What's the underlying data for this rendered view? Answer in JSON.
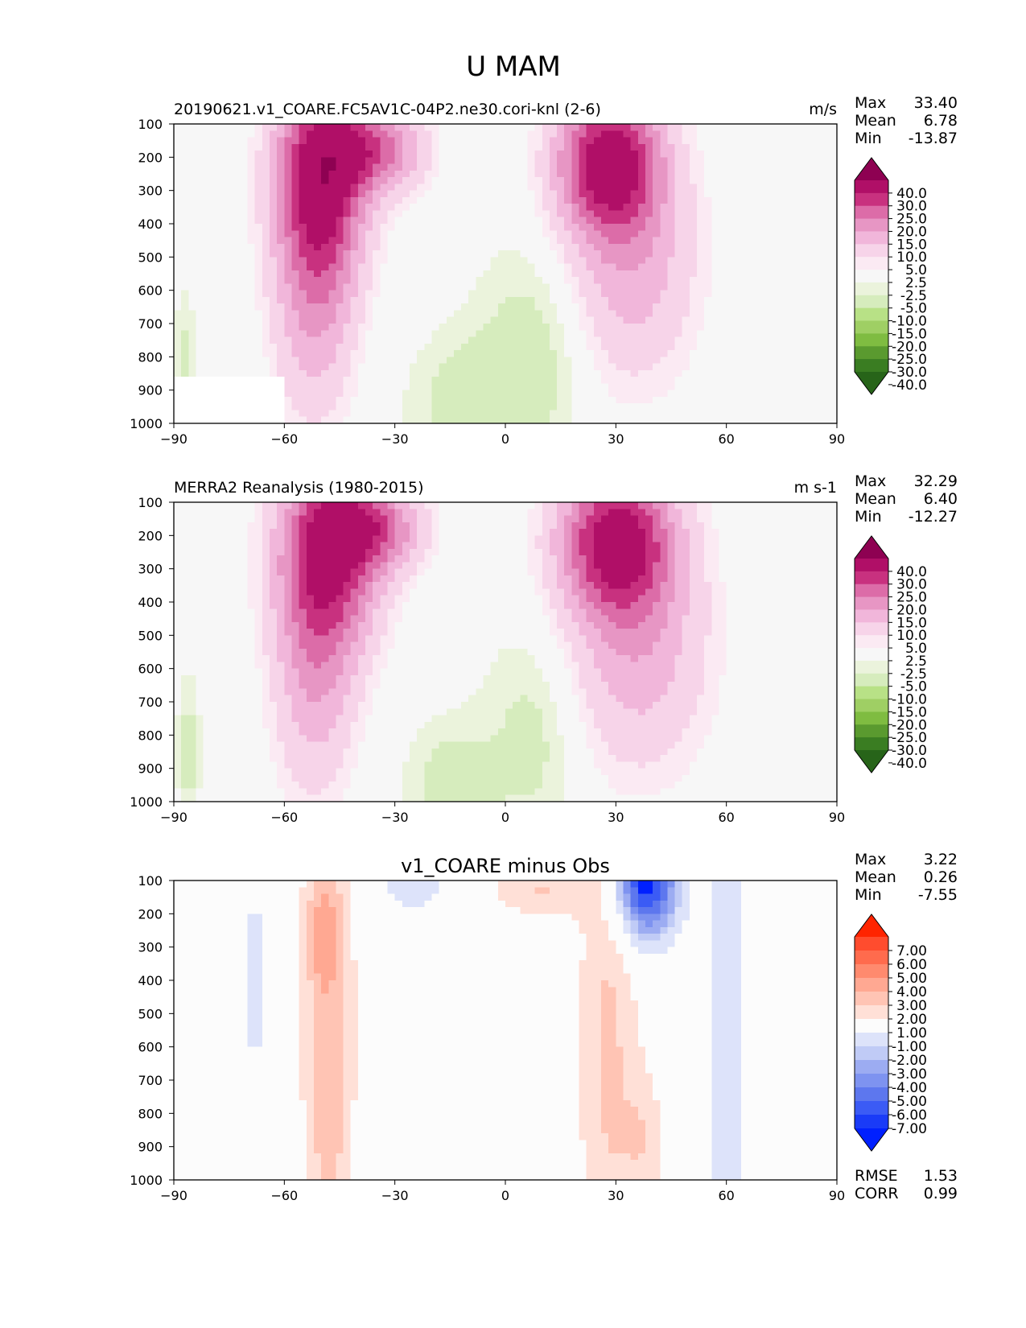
{
  "figure": {
    "title": "U MAM"
  },
  "chart_data": [
    {
      "type": "heatmap",
      "title": "20190621.v1_COARE.FC5AV1C-04P2.ne30.cori-knl (2-6)",
      "units": "m/s",
      "xlim": [
        -90,
        90
      ],
      "ylim": [
        1000,
        100
      ],
      "xticks": [
        "−90",
        "−60",
        "−30",
        "0",
        "30",
        "60",
        "90"
      ],
      "yticks": [
        "100",
        "200",
        "300",
        "400",
        "500",
        "600",
        "700",
        "800",
        "900",
        "1000"
      ],
      "stats": {
        "Max": "33.40",
        "Mean": "6.78",
        "Min": "-13.87"
      },
      "colorbar": {
        "labels": [
          "40.0",
          "30.0",
          "25.0",
          "20.0",
          "15.0",
          "10.0",
          "5.0",
          "2.5",
          "-2.5",
          "-5.0",
          "-10.0",
          "-15.0",
          "-20.0",
          "-25.0",
          "-30.0",
          "-40.0"
        ],
        "colors": [
          "#8e0152",
          "#b00f67",
          "#c8317f",
          "#dc6ca8",
          "#e796c4",
          "#f1b6da",
          "#f7d4e9",
          "#fbeaf3",
          "#f7f7f7",
          "#ebf3dc",
          "#d6ecbd",
          "#b8e186",
          "#9fcf64",
          "#7fbc41",
          "#5a9a2f",
          "#3a7d22",
          "#276419"
        ]
      },
      "field": {
        "kind": "model",
        "bg": -1,
        "jets": [
          {
            "lat": -50,
            "p": 240,
            "amp": 34,
            "sx": 9,
            "sp": 230
          },
          {
            "lat": -52,
            "p": 650,
            "amp": 14,
            "sx": 8,
            "sp": 260
          },
          {
            "lat": -34,
            "p": 180,
            "amp": 20,
            "sx": 9,
            "sp": 90
          },
          {
            "lat": 28,
            "p": 210,
            "amp": 33,
            "sx": 10,
            "sp": 150
          },
          {
            "lat": 34,
            "p": 520,
            "amp": 14,
            "sx": 13,
            "sp": 260
          },
          {
            "lat": 8,
            "p": 780,
            "amp": -7,
            "sx": 10,
            "sp": 220
          },
          {
            "lat": -10,
            "p": 950,
            "amp": -7,
            "sx": 10,
            "sp": 140
          },
          {
            "lat": -87,
            "p": 850,
            "amp": -6,
            "sx": 2,
            "sp": 150
          }
        ],
        "mask": [
          -90,
          860,
          -60,
          1000
        ]
      }
    },
    {
      "type": "heatmap",
      "title": "MERRA2 Reanalysis (1980-2015)",
      "units": "m s-1",
      "xlim": [
        -90,
        90
      ],
      "ylim": [
        1000,
        100
      ],
      "xticks": [
        "−90",
        "−60",
        "−30",
        "0",
        "30",
        "60",
        "90"
      ],
      "yticks": [
        "100",
        "200",
        "300",
        "400",
        "500",
        "600",
        "700",
        "800",
        "900",
        "1000"
      ],
      "stats": {
        "Max": "32.29",
        "Mean": "6.40",
        "Min": "-12.27"
      },
      "colorbar": {
        "labels": [
          "40.0",
          "30.0",
          "25.0",
          "20.0",
          "15.0",
          "10.0",
          "5.0",
          "2.5",
          "-2.5",
          "-5.0",
          "-10.0",
          "-15.0",
          "-20.0",
          "-25.0",
          "-30.0",
          "-40.0"
        ],
        "colors": [
          "#8e0152",
          "#b00f67",
          "#c8317f",
          "#dc6ca8",
          "#e796c4",
          "#f1b6da",
          "#f7d4e9",
          "#fbeaf3",
          "#f7f7f7",
          "#ebf3dc",
          "#d6ecbd",
          "#b8e186",
          "#9fcf64",
          "#7fbc41",
          "#5a9a2f",
          "#3a7d22",
          "#276419"
        ]
      },
      "field": {
        "kind": "obs",
        "bg": -1,
        "jets": [
          {
            "lat": -48,
            "p": 240,
            "amp": 32,
            "sx": 10,
            "sp": 220
          },
          {
            "lat": -52,
            "p": 650,
            "amp": 13,
            "sx": 8,
            "sp": 260
          },
          {
            "lat": -34,
            "p": 180,
            "amp": 18,
            "sx": 9,
            "sp": 90
          },
          {
            "lat": 30,
            "p": 210,
            "amp": 32,
            "sx": 11,
            "sp": 160
          },
          {
            "lat": 36,
            "p": 540,
            "amp": 14,
            "sx": 14,
            "sp": 270
          },
          {
            "lat": 8,
            "p": 790,
            "amp": -6,
            "sx": 9,
            "sp": 220
          },
          {
            "lat": -14,
            "p": 960,
            "amp": -7,
            "sx": 8,
            "sp": 130
          },
          {
            "lat": -86,
            "p": 850,
            "amp": -6,
            "sx": 2,
            "sp": 150
          }
        ],
        "mask": null
      }
    },
    {
      "type": "heatmap",
      "title": "v1_COARE minus Obs",
      "units": "",
      "xlim": [
        -90,
        90
      ],
      "ylim": [
        1000,
        100
      ],
      "xticks": [
        "−90",
        "−60",
        "−30",
        "0",
        "30",
        "60",
        "90"
      ],
      "yticks": [
        "100",
        "200",
        "300",
        "400",
        "500",
        "600",
        "700",
        "800",
        "900",
        "1000"
      ],
      "stats": {
        "Max": "3.22",
        "Mean": "0.26",
        "Min": "-7.55"
      },
      "extra_stats": {
        "RMSE": "1.53",
        "CORR": "0.99"
      },
      "colorbar": {
        "labels": [
          "7.00",
          "6.00",
          "5.00",
          "4.00",
          "3.00",
          "2.00",
          "1.00",
          "-1.00",
          "-2.00",
          "-3.00",
          "-4.00",
          "-5.00",
          "-6.00",
          "-7.00"
        ],
        "colors": [
          "#ff2400",
          "#ff4c2e",
          "#ff6b4d",
          "#ff8a6e",
          "#ffa892",
          "#ffc4b4",
          "#ffe0d7",
          "#fcfcfc",
          "#dde3fa",
          "#c0cbf6",
          "#9cacf2",
          "#7e93f0",
          "#5d77ee",
          "#3b5bf5",
          "#1a3bf7",
          "#0020ff"
        ]
      },
      "field": {
        "kind": "diff",
        "bg": 0,
        "jets": [
          {
            "lat": -48,
            "p": 560,
            "amp": 2.8,
            "sx": 5,
            "sp": 650
          },
          {
            "lat": -50,
            "p": 260,
            "amp": 1.5,
            "sx": 3,
            "sp": 100
          },
          {
            "lat": 28,
            "p": 600,
            "amp": 2.2,
            "sx": 6,
            "sp": 600
          },
          {
            "lat": 38,
            "p": 880,
            "amp": 1.5,
            "sx": 4,
            "sp": 150
          },
          {
            "lat": 10,
            "p": 130,
            "amp": 2.0,
            "sx": 10,
            "sp": 60
          },
          {
            "lat": 38,
            "p": 100,
            "amp": -8,
            "sx": 6,
            "sp": 120
          },
          {
            "lat": 60,
            "p": 550,
            "amp": -2.0,
            "sx": 4,
            "sp": 550
          },
          {
            "lat": -68,
            "p": 400,
            "amp": -1.6,
            "sx": 3,
            "sp": 220
          },
          {
            "lat": -25,
            "p": 120,
            "amp": -1.5,
            "sx": 8,
            "sp": 60
          }
        ],
        "mask": null
      }
    }
  ]
}
